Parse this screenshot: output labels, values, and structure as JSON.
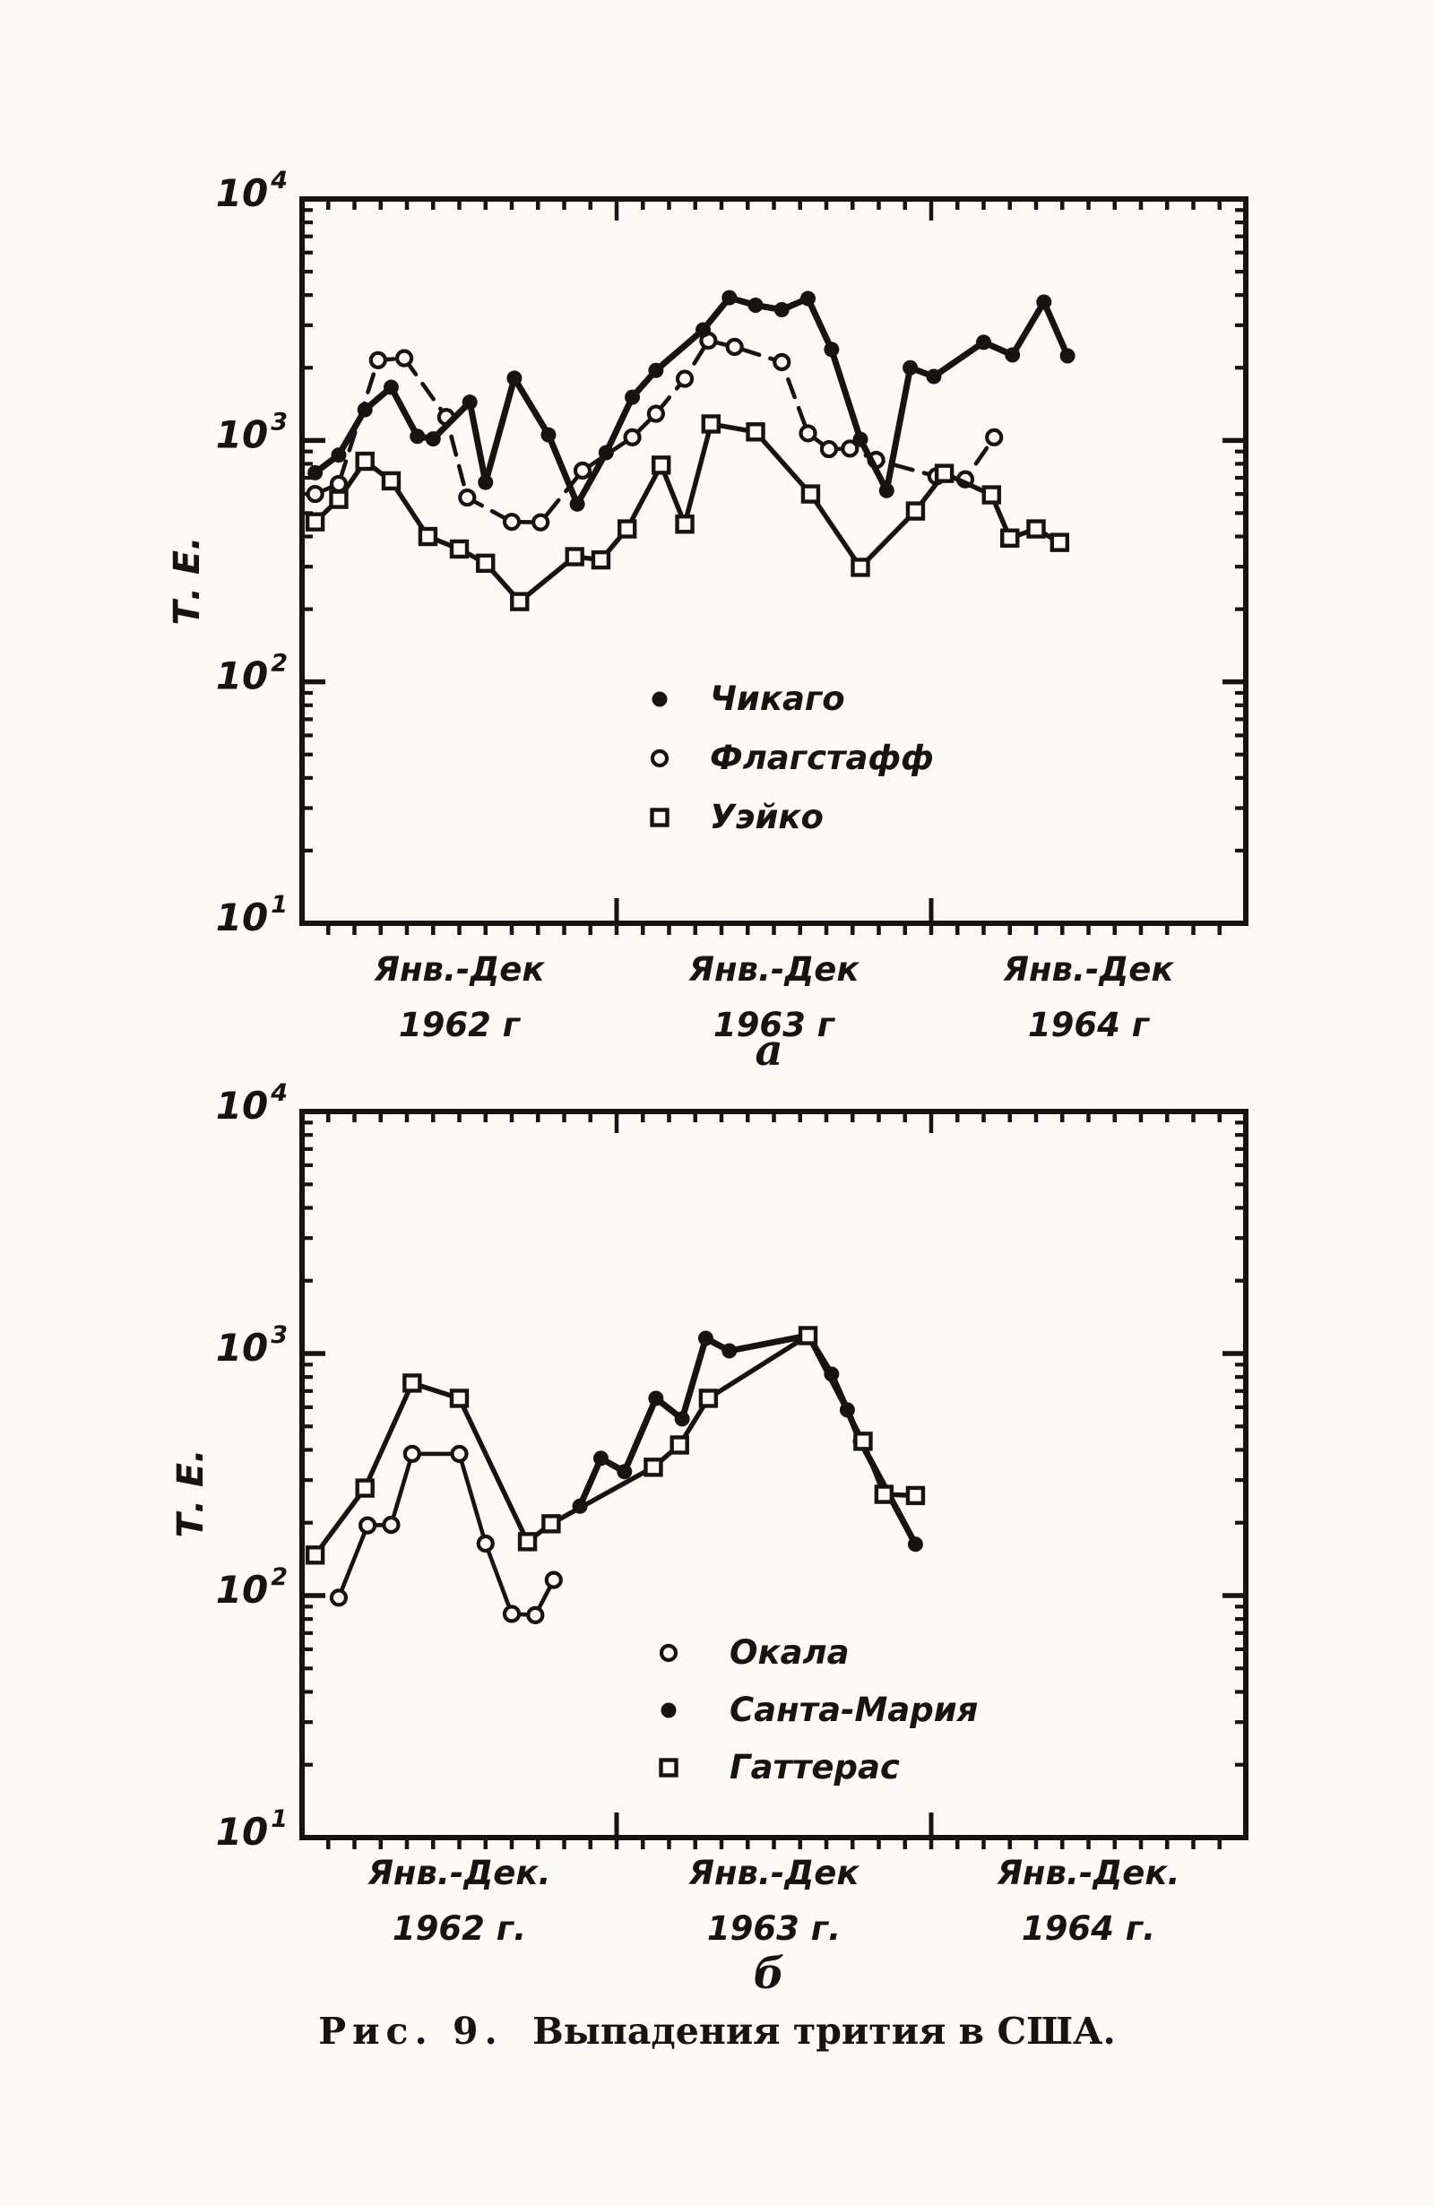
{
  "caption": {
    "prefix": "Рис. 9.",
    "text": "Выпадения трития в США."
  },
  "colors": {
    "paper": "#fbfaf5",
    "ink": "#17130e"
  },
  "chart_data": [
    {
      "id": "chart-a",
      "type": "line",
      "sublabel": "а",
      "ylabel": "Т. Е.",
      "yscale": "log",
      "ylim": [
        10,
        10000
      ],
      "y_tick_exponents": [
        4,
        3,
        2,
        1
      ],
      "x_months_total": 36,
      "grid": false,
      "legend_position": "inside-center",
      "x_tick_labels": [
        {
          "line1": "Янв.-Дек",
          "line2": "1962 г"
        },
        {
          "line1": "Янв.-Дек",
          "line2": "1963 г"
        },
        {
          "line1": "Янв.-Дек",
          "line2": "1964 г"
        }
      ],
      "legend": [
        {
          "marker": "filled-circle",
          "label": "Чикаго"
        },
        {
          "marker": "open-circle",
          "label": "Флагстафф"
        },
        {
          "marker": "open-square",
          "label": "Уэйко"
        }
      ],
      "draw_order": [
        1,
        2,
        0
      ],
      "series": [
        {
          "name": "Чикаго",
          "marker": "filled-circle",
          "line": "solid",
          "points": [
            [
              1,
              735
            ],
            [
              1.9,
              870
            ],
            [
              2.9,
              1340
            ],
            [
              3.9,
              1660
            ],
            [
              4.9,
              1040
            ],
            [
              5.5,
              1015
            ],
            [
              6.9,
              1440
            ],
            [
              7.5,
              670
            ],
            [
              8.6,
              1810
            ],
            [
              9.9,
              1055
            ],
            [
              11,
              545
            ],
            [
              12.1,
              890
            ],
            [
              13.1,
              1510
            ],
            [
              14,
              1950
            ],
            [
              15.8,
              2870
            ],
            [
              16.8,
              3900
            ],
            [
              17.8,
              3630
            ],
            [
              18.8,
              3480
            ],
            [
              19.8,
              3870
            ],
            [
              20.7,
              2380
            ],
            [
              21.8,
              1010
            ],
            [
              22.8,
              620
            ],
            [
              23.7,
              2000
            ],
            [
              24.6,
              1840
            ],
            [
              26.5,
              2550
            ],
            [
              27.6,
              2260
            ],
            [
              28.8,
              3740
            ],
            [
              29.7,
              2240
            ]
          ]
        },
        {
          "name": "Флагстафф",
          "marker": "open-circle",
          "line": "dashed",
          "points": [
            [
              1,
              600
            ],
            [
              1.9,
              660
            ],
            [
              3.4,
              2150
            ],
            [
              4.4,
              2190
            ],
            [
              6,
              1250
            ],
            [
              6.8,
              580
            ],
            [
              8.5,
              460
            ],
            [
              9.6,
              458
            ],
            [
              11.2,
              750
            ],
            [
              13.1,
              1030
            ],
            [
              14,
              1290
            ],
            [
              15.1,
              1800
            ],
            [
              16,
              2590
            ],
            [
              17,
              2440
            ],
            [
              18.8,
              2110
            ],
            [
              19.8,
              1070
            ],
            [
              20.6,
              920
            ],
            [
              21.4,
              925
            ],
            [
              22.4,
              830
            ],
            [
              24.7,
              710
            ],
            [
              25.8,
              690
            ],
            [
              26.9,
              1030
            ]
          ]
        },
        {
          "name": "Уэйко",
          "marker": "open-square",
          "line": "solid",
          "points": [
            [
              1,
              460
            ],
            [
              1.9,
              570
            ],
            [
              2.9,
              820
            ],
            [
              3.9,
              680
            ],
            [
              5.3,
              400
            ],
            [
              6.5,
              355
            ],
            [
              7.5,
              310
            ],
            [
              8.8,
              215
            ],
            [
              10.9,
              330
            ],
            [
              11.9,
              320
            ],
            [
              12.9,
              430
            ],
            [
              14.2,
              790
            ],
            [
              15.1,
              450
            ],
            [
              16.1,
              1170
            ],
            [
              17.8,
              1085
            ],
            [
              19.9,
              600
            ],
            [
              21.8,
              298
            ],
            [
              23.9,
              510
            ],
            [
              25,
              730
            ],
            [
              26.8,
              595
            ],
            [
              27.5,
              394
            ],
            [
              28.5,
              430
            ],
            [
              29.4,
              378
            ]
          ]
        }
      ]
    },
    {
      "id": "chart-b",
      "type": "line",
      "sublabel": "б",
      "ylabel": "Т. Е.",
      "yscale": "log",
      "ylim": [
        10,
        10000
      ],
      "y_tick_exponents": [
        4,
        3,
        2,
        1
      ],
      "x_months_total": 36,
      "grid": false,
      "legend_position": "inside-center",
      "x_tick_labels": [
        {
          "line1": "Янв.-Дек.",
          "line2": "1962 г."
        },
        {
          "line1": "Янв.-Дек",
          "line2": "1963 г."
        },
        {
          "line1": "Янв.-Дек.",
          "line2": "1964 г."
        }
      ],
      "legend": [
        {
          "marker": "open-circle",
          "label": "Окала"
        },
        {
          "marker": "filled-circle",
          "label": "Санта-Мария"
        },
        {
          "marker": "open-square",
          "label": "Гаттерас"
        }
      ],
      "draw_order": [
        0,
        1,
        2
      ],
      "series": [
        {
          "name": "Окала",
          "marker": "open-circle",
          "line": "solid",
          "points": [
            [
              1.9,
              98
            ],
            [
              3,
              195
            ],
            [
              3.9,
              196
            ],
            [
              4.7,
              385
            ],
            [
              6.5,
              385
            ],
            [
              7.5,
              164
            ],
            [
              8.5,
              84
            ],
            [
              9.4,
              83
            ],
            [
              10.1,
              116
            ]
          ]
        },
        {
          "name": "Санта-Мария",
          "marker": "filled-circle",
          "line": "solid",
          "points": [
            [
              11.1,
              234
            ],
            [
              11.9,
              369
            ],
            [
              12.8,
              325
            ],
            [
              14,
              653
            ],
            [
              15,
              537
            ],
            [
              15.9,
              1156
            ],
            [
              16.8,
              1026
            ],
            [
              19.8,
              1186
            ],
            [
              20.7,
              822
            ],
            [
              21.3,
              585
            ],
            [
              21.8,
              434
            ],
            [
              23.9,
              163
            ]
          ]
        },
        {
          "name": "Гаттерас",
          "marker": "open-square",
          "line": "dashed",
          "points": [
            [
              1,
              147
            ],
            [
              2.9,
              278
            ],
            [
              4.7,
              755
            ],
            [
              6.5,
              653
            ],
            [
              9.1,
              167
            ],
            [
              10,
              198
            ],
            [
              13.9,
              339
            ],
            [
              14.9,
              419
            ],
            [
              16,
              653
            ],
            [
              19.8,
              1186
            ],
            [
              21.9,
              434
            ],
            [
              22.7,
              262
            ],
            [
              23.9,
              259
            ]
          ]
        }
      ]
    }
  ]
}
